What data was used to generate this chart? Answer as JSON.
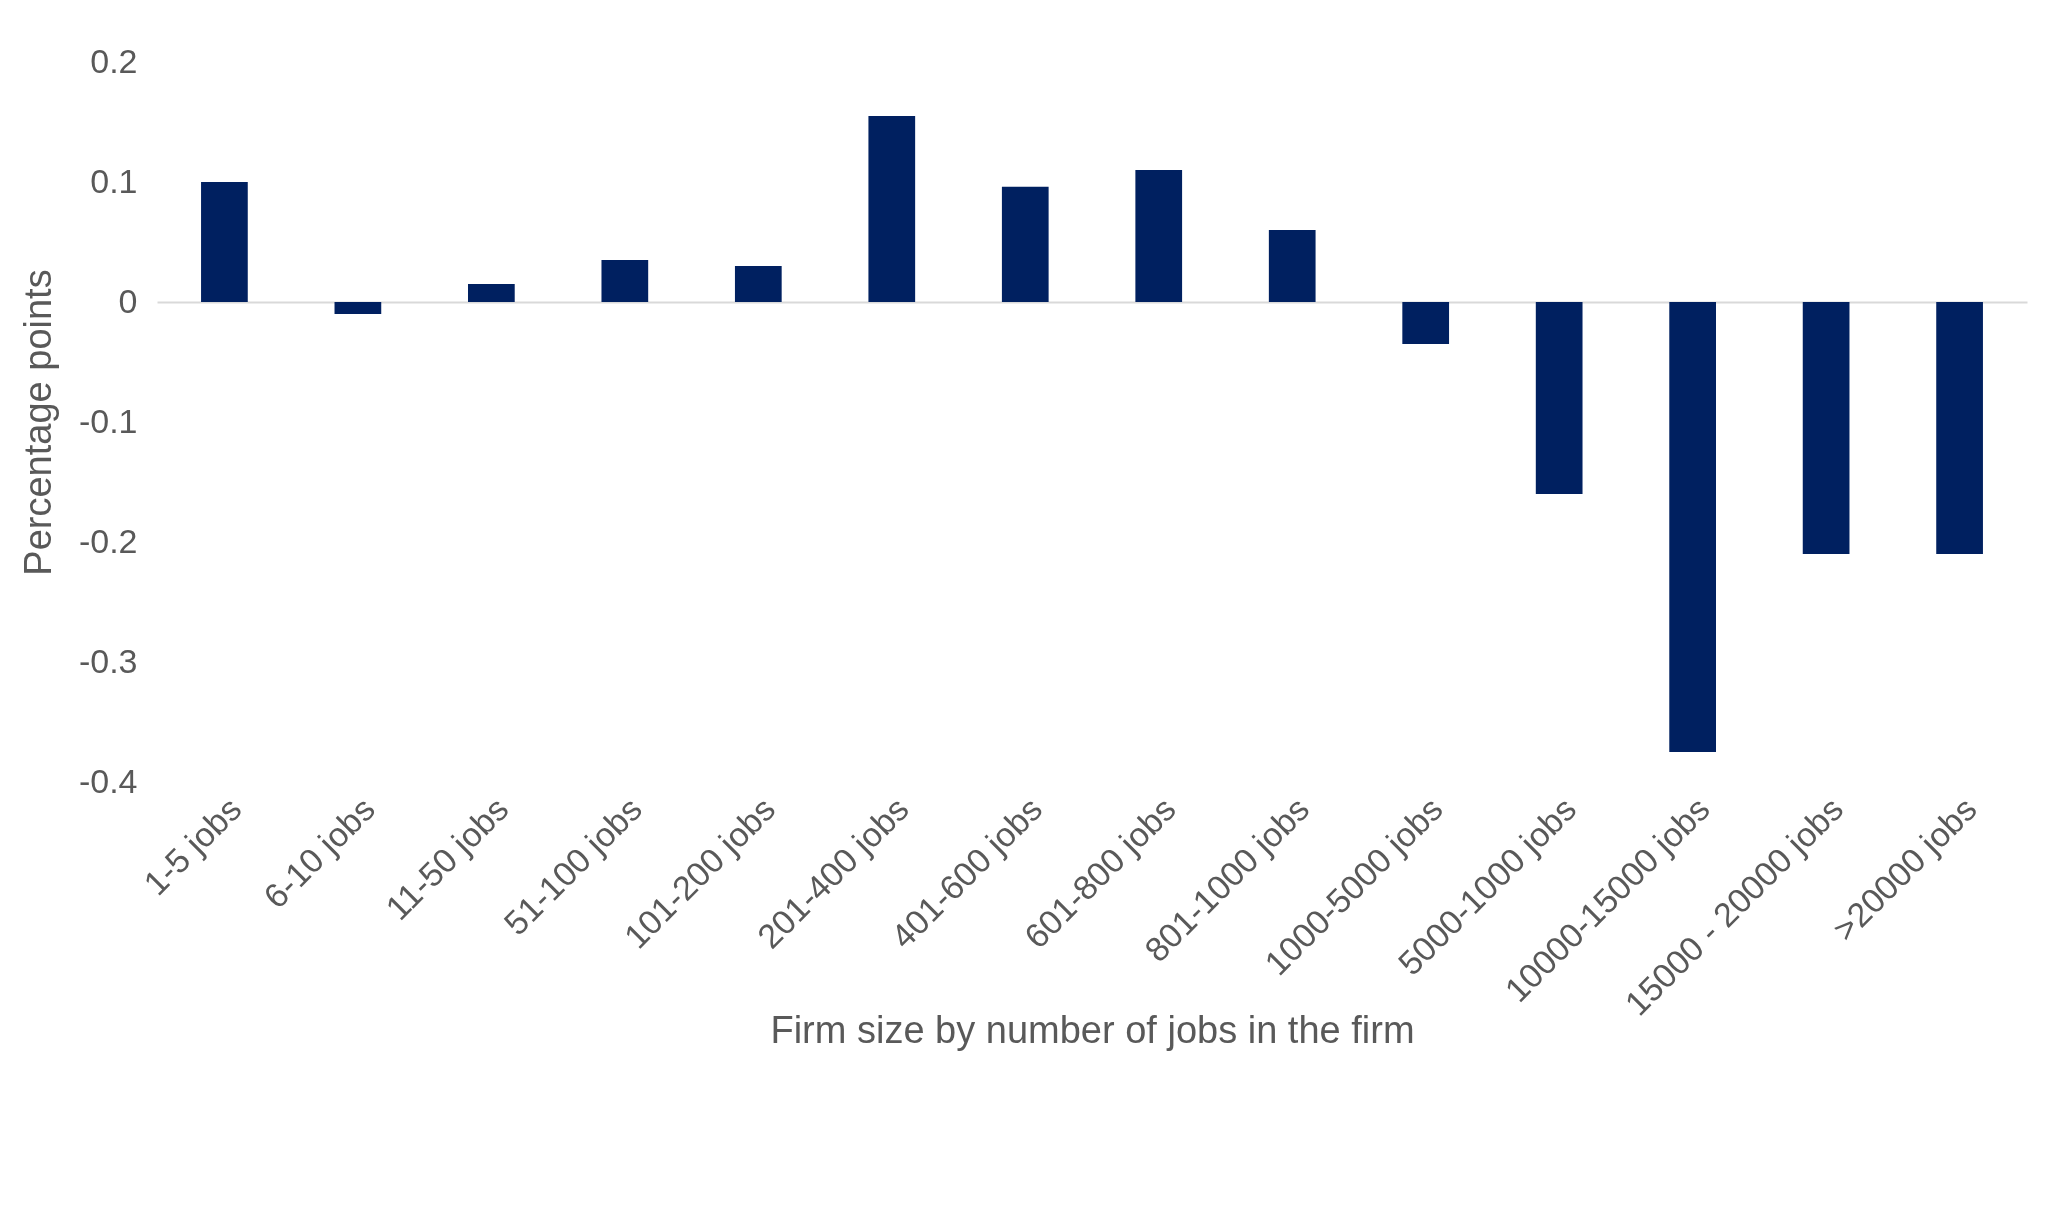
{
  "chart_data": {
    "type": "bar",
    "xlabel": "Firm size by number of jobs in the firm",
    "ylabel": "Percentage points",
    "categories": [
      "1-5 jobs",
      "6-10 jobs",
      "11-50 jobs",
      "51-100 jobs",
      "101-200 jobs",
      "201-400 jobs",
      "401-600 jobs",
      "601-800 jobs",
      "801-1000 jobs",
      "1000-5000 jobs",
      "5000-1000 jobs",
      "10000-15000 jobs",
      "15000 - 20000 jobs",
      ">20000 jobs"
    ],
    "values": [
      0.1,
      -0.01,
      0.015,
      0.035,
      0.03,
      0.155,
      0.096,
      0.11,
      0.06,
      -0.035,
      -0.16,
      -0.375,
      -0.21,
      -0.21
    ],
    "color": "#002060",
    "ylim": [
      -0.4,
      0.2
    ],
    "yticks": [
      -0.4,
      -0.3,
      -0.2,
      -0.1,
      0,
      0.1,
      0.2
    ]
  }
}
